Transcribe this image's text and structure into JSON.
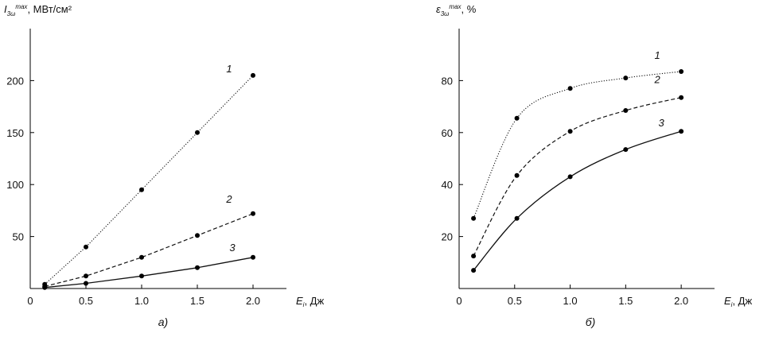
{
  "chart_data": [
    {
      "type": "line",
      "panel_label": "а)",
      "ylabel": {
        "symbol": "I",
        "sub": "3ω",
        "sup": "max",
        "unit": ", МВт/см²"
      },
      "xlabel": {
        "symbol": "E",
        "sub": "i",
        "unit": ", Дж"
      },
      "origin_label": "0",
      "xlim": [
        0,
        2.3
      ],
      "ylim": [
        0,
        250
      ],
      "xticks": [
        0.5,
        1.0,
        1.5,
        2.0
      ],
      "xtick_labels": [
        "0.5",
        "1.0",
        "1.5",
        "2.0"
      ],
      "yticks": [
        50,
        100,
        150,
        200
      ],
      "ytick_labels": [
        "50",
        "100",
        "150",
        "200"
      ],
      "grid": false,
      "series": [
        {
          "name": "1",
          "style": "dotted",
          "x": [
            0.13,
            0.5,
            1.0,
            1.5,
            2.0
          ],
          "y": [
            4,
            40,
            95,
            150,
            205
          ]
        },
        {
          "name": "2",
          "style": "dashed",
          "x": [
            0.13,
            0.5,
            1.0,
            1.5,
            2.0
          ],
          "y": [
            2,
            12,
            30,
            51,
            72
          ]
        },
        {
          "name": "3",
          "style": "solid",
          "x": [
            0.13,
            0.5,
            1.0,
            1.5,
            2.0
          ],
          "y": [
            1,
            5,
            12,
            20,
            30
          ]
        }
      ]
    },
    {
      "type": "line",
      "panel_label": "б)",
      "ylabel": {
        "symbol": "ε",
        "sub": "3ω",
        "sup": "max",
        "unit": ", %"
      },
      "xlabel": {
        "symbol": "E",
        "sub": "i",
        "unit": ", Дж"
      },
      "origin_label": "0",
      "xlim": [
        0,
        2.3
      ],
      "ylim": [
        0,
        100
      ],
      "xticks": [
        0.5,
        1.0,
        1.5,
        2.0
      ],
      "xtick_labels": [
        "0.5",
        "1.0",
        "1.5",
        "2.0"
      ],
      "yticks": [
        20,
        40,
        60,
        80
      ],
      "ytick_labels": [
        "20",
        "40",
        "60",
        "80"
      ],
      "grid": false,
      "series": [
        {
          "name": "1",
          "style": "dotted",
          "x": [
            0.13,
            0.52,
            1.0,
            1.5,
            2.0
          ],
          "y": [
            27,
            65.5,
            77,
            81,
            83.5
          ]
        },
        {
          "name": "2",
          "style": "dashed",
          "x": [
            0.13,
            0.52,
            1.0,
            1.5,
            2.0
          ],
          "y": [
            12.5,
            43.5,
            60.5,
            68.5,
            73.5
          ]
        },
        {
          "name": "3",
          "style": "solid",
          "x": [
            0.13,
            0.52,
            1.0,
            1.5,
            2.0
          ],
          "y": [
            7,
            27,
            43,
            53.5,
            60.5
          ]
        }
      ]
    }
  ]
}
